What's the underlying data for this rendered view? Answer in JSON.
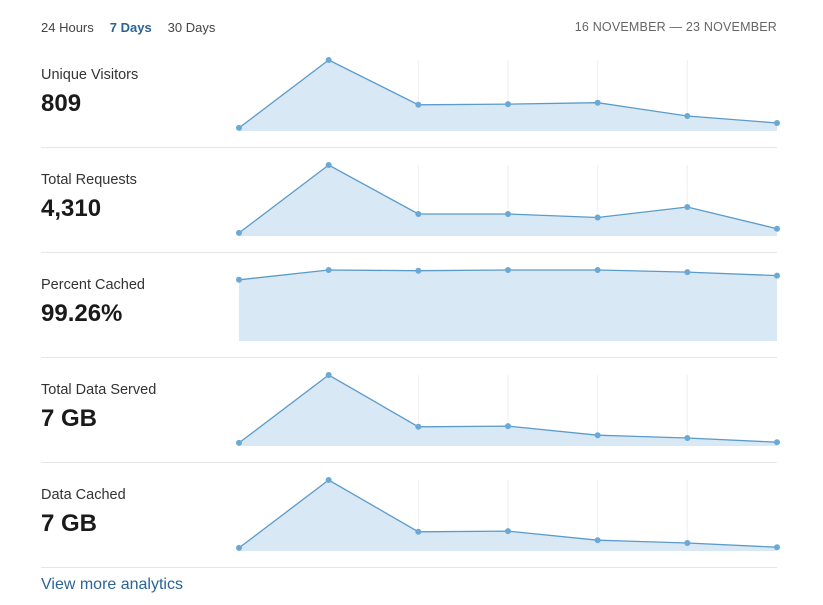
{
  "tabs": [
    {
      "label": "24 Hours",
      "active": false
    },
    {
      "label": "7 Days",
      "active": true
    },
    {
      "label": "30 Days",
      "active": false
    }
  ],
  "date_range": "16 NOVEMBER — 23 NOVEMBER",
  "colors": {
    "line": "#5b9bc9",
    "fill": "#d8e8f5",
    "point": "#6aa9d6",
    "active_tab": "#2a6496",
    "link": "#2a6496"
  },
  "metrics": [
    {
      "label": "Unique Visitors",
      "value": "809",
      "trend": [
        0.03,
        1.0,
        0.36,
        0.37,
        0.39,
        0.2,
        0.1
      ]
    },
    {
      "label": "Total Requests",
      "value": "4,310",
      "trend": [
        0.03,
        1.0,
        0.3,
        0.3,
        0.25,
        0.4,
        0.09
      ]
    },
    {
      "label": "Percent Cached",
      "value": "99.26%",
      "trend": [
        0.86,
        1.0,
        0.99,
        1.0,
        1.0,
        0.97,
        0.92
      ]
    },
    {
      "label": "Total Data Served",
      "value": "7 GB",
      "trend": [
        0.03,
        1.0,
        0.26,
        0.27,
        0.14,
        0.1,
        0.04
      ]
    },
    {
      "label": "Data Cached",
      "value": "7 GB",
      "trend": [
        0.03,
        1.0,
        0.26,
        0.27,
        0.14,
        0.1,
        0.04
      ]
    }
  ],
  "footer_link": "View more analytics"
}
